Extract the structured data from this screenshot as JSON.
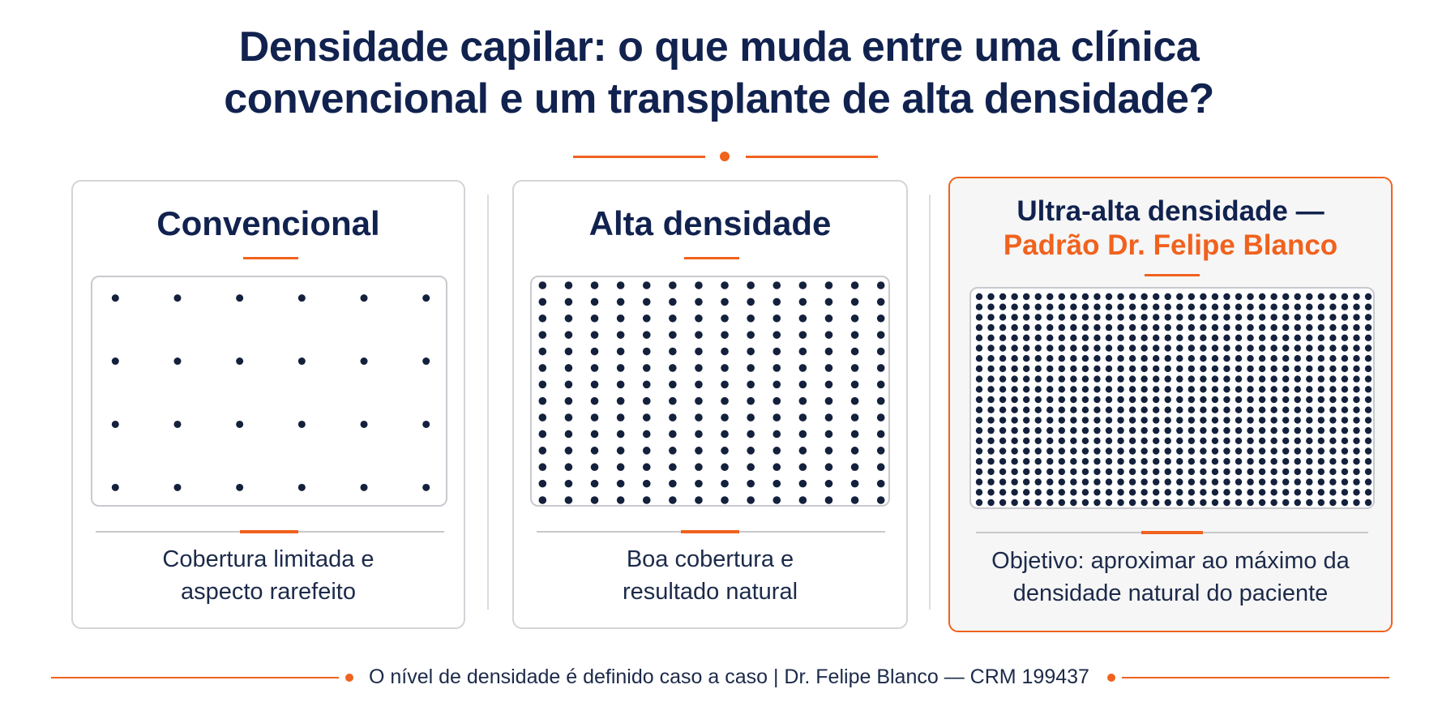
{
  "title": {
    "line1": "Densidade capilar: o que muda entre uma clínica",
    "line2": "convencional e um transplante de alta densidade?"
  },
  "colors": {
    "navy": "#11224f",
    "accent": "#f0621e",
    "dot": "#14213d"
  },
  "cards": [
    {
      "title": "Convencional",
      "grid": {
        "columns": 6,
        "rows": 4
      },
      "description": [
        "Cobertura limitada e",
        "aspecto rarefeito"
      ]
    },
    {
      "title": "Alta densidade",
      "grid": {
        "columns": 14,
        "rows": 14
      },
      "description": [
        "Boa cobertura e",
        "resultado natural"
      ]
    },
    {
      "title_line1": "Ultra-alta densidade —",
      "title_line2": "Padrão Dr. Felipe Blanco",
      "grid": {
        "columns": 34,
        "rows": 21
      },
      "description": [
        "Objetivo: aproximar ao máximo da",
        "densidade natural do paciente"
      ]
    }
  ],
  "footer": {
    "text": "O nível de densidade é definido caso a caso  |  Dr. Felipe Blanco — CRM 199437"
  }
}
